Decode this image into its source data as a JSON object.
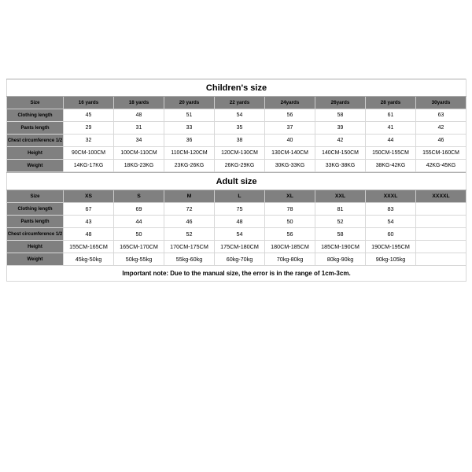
{
  "children": {
    "title": "Children's size",
    "header_label": "Size",
    "headers": [
      "16 yards",
      "18 yards",
      "20 yards",
      "22 yards",
      "24yards",
      "26yards",
      "28 yards",
      "30yards"
    ],
    "rows": [
      {
        "label": "Clothing length",
        "cells": [
          "45",
          "48",
          "51",
          "54",
          "56",
          "58",
          "61",
          "63"
        ]
      },
      {
        "label": "Pants length",
        "cells": [
          "29",
          "31",
          "33",
          "35",
          "37",
          "39",
          "41",
          "42"
        ]
      },
      {
        "label": "Chest circumference 1/2",
        "cells": [
          "32",
          "34",
          "36",
          "38",
          "40",
          "42",
          "44",
          "46"
        ]
      },
      {
        "label": "Height",
        "cells": [
          "90CM-100CM",
          "100CM-110CM",
          "110CM-120CM",
          "120CM-130CM",
          "130CM-140CM",
          "140CM-150CM",
          "150CM-155CM",
          "155CM-160CM"
        ]
      },
      {
        "label": "Weight",
        "cells": [
          "14KG-17KG",
          "18KG-23KG",
          "23KG-26KG",
          "26KG-29KG",
          "30KG-33KG",
          "33KG-38KG",
          "38KG-42KG",
          "42KG-45KG"
        ]
      }
    ]
  },
  "adult": {
    "title": "Adult size",
    "header_label": "Size",
    "headers": [
      "XS",
      "S",
      "M",
      "L",
      "XL",
      "XXL",
      "XXXL",
      "XXXXL"
    ],
    "rows": [
      {
        "label": "Clothing length",
        "cells": [
          "67",
          "69",
          "72",
          "75",
          "78",
          "81",
          "83",
          ""
        ]
      },
      {
        "label": "Pants length",
        "cells": [
          "43",
          "44",
          "46",
          "48",
          "50",
          "52",
          "54",
          ""
        ]
      },
      {
        "label": "Chest circumference 1/2",
        "cells": [
          "48",
          "50",
          "52",
          "54",
          "56",
          "58",
          "60",
          ""
        ]
      },
      {
        "label": "Height",
        "cells": [
          "155CM-165CM",
          "165CM-170CM",
          "170CM-175CM",
          "175CM-180CM",
          "180CM-185CM",
          "185CM-190CM",
          "190CM-195CM",
          ""
        ]
      },
      {
        "label": "Weight",
        "cells": [
          "45kg-50kg",
          "50kg-55kg",
          "55kg-60kg",
          "60kg-70kg",
          "70kg-80kg",
          "80kg-90kg",
          "90kg-105kg",
          ""
        ]
      }
    ],
    "note": "Important note: Due to the manual size, the error is in the range of 1cm-3cm."
  },
  "style": {
    "header_bg": "#808080",
    "border_color": "#d8d8d8",
    "title_fontsize": 11,
    "cell_fontsize": 7
  }
}
